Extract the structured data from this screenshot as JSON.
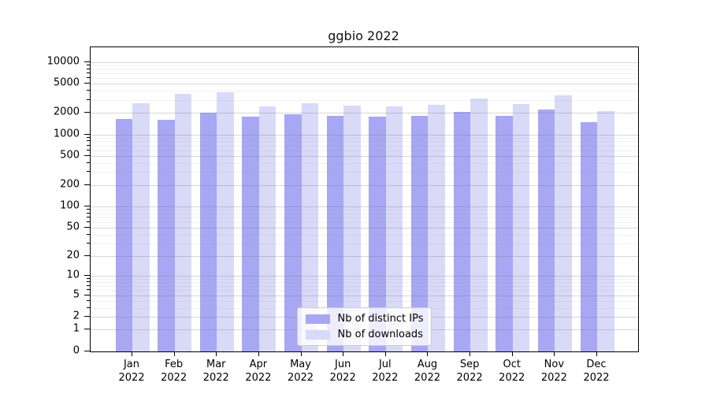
{
  "chart_data": {
    "type": "bar",
    "title": "ggbio 2022",
    "categories": [
      "Jan 2022",
      "Feb 2022",
      "Mar 2022",
      "Apr 2022",
      "May 2022",
      "Jun 2022",
      "Jul 2022",
      "Aug 2022",
      "Sep 2022",
      "Oct 2022",
      "Nov 2022",
      "Dec 2022"
    ],
    "series": [
      {
        "name": "Nb of distinct IPs",
        "color": "#a7a7f3",
        "values": [
          1620,
          1590,
          1990,
          1760,
          1910,
          1790,
          1760,
          1800,
          2040,
          1800,
          2200,
          1480
        ]
      },
      {
        "name": "Nb of downloads",
        "color": "#d9d9f8",
        "values": [
          2720,
          3690,
          3870,
          2470,
          2670,
          2520,
          2420,
          2590,
          3170,
          2630,
          3470,
          2090
        ]
      }
    ],
    "y_ticks": [
      0,
      1,
      2,
      5,
      10,
      20,
      50,
      100,
      200,
      500,
      1000,
      2000,
      5000,
      10000
    ],
    "scale": "log1p",
    "ylim": [
      0,
      16000
    ],
    "xlabel": "",
    "ylabel": "",
    "grid": "on",
    "legend_position": "lower center",
    "colors": {
      "axis": "#000000",
      "grid_major": "#dcdcdc",
      "grid_minor": "#f0f0f0",
      "background": "#ffffff"
    }
  }
}
